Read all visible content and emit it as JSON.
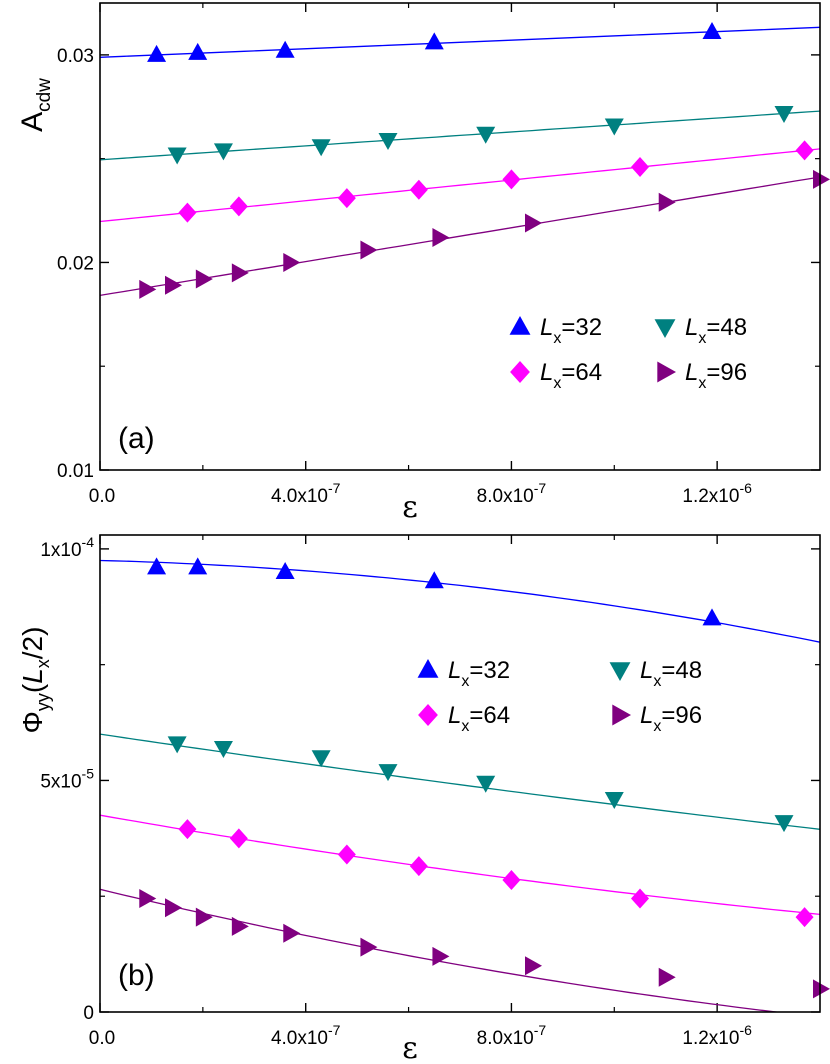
{
  "chart_data": [
    {
      "type": "scatter",
      "panel_label": "(a)",
      "xlabel": "ε",
      "ylabel_main": "A",
      "ylabel_sub": "cdw",
      "xlim": [
        0,
        1.4e-06
      ],
      "ylim": [
        0.01,
        0.0325
      ],
      "xticks": [
        {
          "v": 0,
          "label": "0.0",
          "base": "0.0",
          "exp": ""
        },
        {
          "v": 4e-07,
          "label": "4.0x10-7",
          "base": "4.0x10",
          "exp": "-7"
        },
        {
          "v": 8e-07,
          "label": "8.0x10-7",
          "base": "8.0x10",
          "exp": "-7"
        },
        {
          "v": 1.2e-06,
          "label": "1.2x10-6",
          "base": "1.2x10",
          "exp": "-6"
        }
      ],
      "yticks": [
        {
          "v": 0.01,
          "label": "0.01",
          "base": "0.01",
          "exp": ""
        },
        {
          "v": 0.02,
          "label": "0.02",
          "base": "0.02",
          "exp": ""
        },
        {
          "v": 0.03,
          "label": "0.03",
          "base": "0.03",
          "exp": ""
        }
      ],
      "legend": {
        "placement": "lower-right",
        "columns": 2
      },
      "series": [
        {
          "name": "Lx=32",
          "lname": "L",
          "sub": "x",
          "tail": "=32",
          "color": "#0000ff",
          "marker": "triangle-up",
          "x": [
            1.1e-07,
            1.9e-07,
            3.6e-07,
            6.5e-07,
            1.19e-06
          ],
          "y": [
            0.03,
            0.0301,
            0.0302,
            0.0306,
            0.0311
          ],
          "fit": [
            0.0299,
            0.00114,
            2e-05
          ]
        },
        {
          "name": "Lx=48",
          "lname": "L",
          "sub": "x",
          "tail": "=48",
          "color": "#008080",
          "marker": "triangle-down",
          "x": [
            1.5e-07,
            2.4e-07,
            4.3e-07,
            5.6e-07,
            7.5e-07,
            1e-06,
            1.33e-06
          ],
          "y": [
            0.0252,
            0.0254,
            0.0256,
            0.0259,
            0.0262,
            0.0266,
            0.0272
          ],
          "fit": [
            0.0251,
            0.00158,
            0.0
          ]
        },
        {
          "name": "Lx=64",
          "lname": "L",
          "sub": "x",
          "tail": "=64",
          "color": "#ff00ff",
          "marker": "diamond",
          "x": [
            1.7e-07,
            2.7e-07,
            4.8e-07,
            6.2e-07,
            8e-07,
            1.05e-06,
            1.37e-06
          ],
          "y": [
            0.0224,
            0.0227,
            0.0231,
            0.0235,
            0.024,
            0.0246,
            0.0254
          ],
          "fit": [
            0.0219,
            0.00245,
            0.0
          ]
        },
        {
          "name": "Lx=96",
          "lname": "L",
          "sub": "x",
          "tail": "=96",
          "color": "#800080",
          "marker": "triangle-right",
          "x": [
            9e-08,
            1.4e-07,
            2e-07,
            2.7e-07,
            3.7e-07,
            5.2e-07,
            6.6e-07,
            8.4e-07,
            1.1e-06,
            1.4e-06
          ],
          "y": [
            0.0187,
            0.0189,
            0.0192,
            0.0195,
            0.02,
            0.0206,
            0.0212,
            0.0219,
            0.0229,
            0.024
          ],
          "fit": [
            0.0183,
            0.00425,
            0.0
          ]
        }
      ]
    },
    {
      "type": "scatter",
      "panel_label": "(b)",
      "xlabel": "ε",
      "ylabel_main": "Φ",
      "ylabel_sub": "yy",
      "ylabel_tail_open": "(",
      "ylabel_L": "L",
      "ylabel_Lsub": "x",
      "ylabel_tail_close": "/2)",
      "xlim": [
        0,
        1.4e-06
      ],
      "ylim": [
        0,
        0.000103
      ],
      "xticks": [
        {
          "v": 0,
          "label": "0.0",
          "base": "0.0",
          "exp": ""
        },
        {
          "v": 4e-07,
          "label": "4.0x10-7",
          "base": "4.0x10",
          "exp": "-7"
        },
        {
          "v": 8e-07,
          "label": "8.0x10-7",
          "base": "8.0x10",
          "exp": "-7"
        },
        {
          "v": 1.2e-06,
          "label": "1.2x10-6",
          "base": "1.2x10",
          "exp": "-6"
        }
      ],
      "yticks": [
        {
          "v": 0,
          "label": "0",
          "base": "0",
          "exp": ""
        },
        {
          "v": 5e-05,
          "label": "5x10-5",
          "base": "5x10",
          "exp": "-5"
        },
        {
          "v": 0.0001,
          "label": "1x10-4",
          "base": "1x10",
          "exp": "-4"
        }
      ],
      "legend": {
        "placement": "upper-middle",
        "columns": 2
      },
      "series": [
        {
          "name": "Lx=32",
          "lname": "L",
          "sub": "x",
          "tail": "=32",
          "color": "#0000ff",
          "marker": "triangle-up",
          "x": [
            1.1e-07,
            1.9e-07,
            3.6e-07,
            6.5e-07,
            1.19e-06
          ],
          "y": [
            9.6e-05,
            9.6e-05,
            9.5e-05,
            9.3e-05,
            8.5e-05
          ],
          "fit": [
            9.75e-05,
            -2.8,
            -7000000.0
          ]
        },
        {
          "name": "Lx=48",
          "lname": "L",
          "sub": "x",
          "tail": "=48",
          "color": "#008080",
          "marker": "triangle-down",
          "x": [
            1.5e-07,
            2.4e-07,
            4.3e-07,
            5.6e-07,
            7.5e-07,
            1e-06,
            1.33e-06
          ],
          "y": [
            5.8e-05,
            5.7e-05,
            5.5e-05,
            5.2e-05,
            4.95e-05,
            4.6e-05,
            4.1e-05
          ],
          "fit": [
            6e-05,
            -16.5,
            1300000.0
          ]
        },
        {
          "name": "Lx=64",
          "lname": "L",
          "sub": "x",
          "tail": "=64",
          "color": "#ff00ff",
          "marker": "diamond",
          "x": [
            1.7e-07,
            2.7e-07,
            4.8e-07,
            6.2e-07,
            8e-07,
            1.05e-06,
            1.37e-06
          ],
          "y": [
            3.95e-05,
            3.75e-05,
            3.4e-05,
            3.15e-05,
            2.85e-05,
            2.45e-05,
            2.05e-05
          ],
          "fit": [
            4.25e-05,
            -19.5,
            3000000.0
          ]
        },
        {
          "name": "Lx=96",
          "lname": "L",
          "sub": "x",
          "tail": "=96",
          "color": "#800080",
          "marker": "triangle-right",
          "x": [
            9e-08,
            1.4e-07,
            2e-07,
            2.7e-07,
            3.7e-07,
            5.2e-07,
            6.6e-07,
            8.4e-07,
            1.1e-06,
            1.4e-06
          ],
          "y": [
            2.45e-05,
            2.25e-05,
            2.05e-05,
            1.85e-05,
            1.7e-05,
            1.4e-05,
            1.2e-05,
            1e-05,
            7.5e-06,
            5e-06
          ],
          "fit": [
            2.65e-05,
            -27.0,
            5200000.0
          ]
        }
      ]
    }
  ]
}
